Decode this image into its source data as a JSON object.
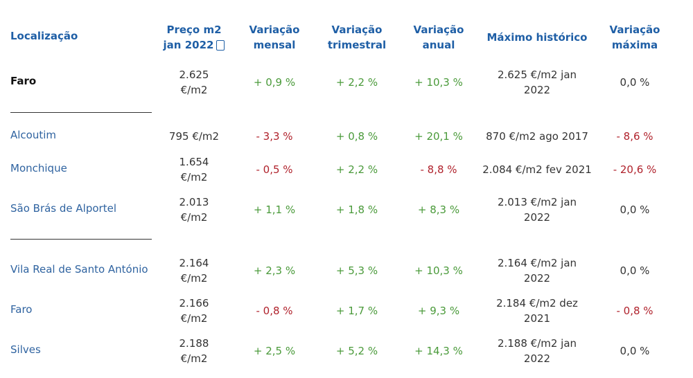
{
  "headers": {
    "location": "Localização",
    "price_line1": "Preço m2",
    "price_line2": "jan 2022",
    "monthly_line1": "Variação",
    "monthly_line2": "mensal",
    "quarterly_line1": "Variação",
    "quarterly_line2": "trimestral",
    "annual_line1": "Variação",
    "annual_line2": "anual",
    "historical_max": "Máximo histórico",
    "maxvar_line1": "Variação",
    "maxvar_line2": "máxima"
  },
  "rows": [
    {
      "location": "Faro",
      "price_line1": "2.625",
      "price_line2": "€/m2",
      "monthly": "+ 0,9 %",
      "quarterly": "+ 2,2 %",
      "annual": "+ 10,3 %",
      "max_line1": "2.625 €/m2 jan",
      "max_line2": "2022",
      "maxvar": "0,0 %"
    },
    {
      "location": "Alcoutim",
      "price_line1": "795 €/m2",
      "price_line2": "",
      "monthly": "- 3,3 %",
      "quarterly": "+ 0,8 %",
      "annual": "+ 20,1 %",
      "max_line1": "870 €/m2 ago 2017",
      "max_line2": "",
      "maxvar": "- 8,6 %"
    },
    {
      "location": "Monchique",
      "price_line1": "1.654",
      "price_line2": "€/m2",
      "monthly": "- 0,5 %",
      "quarterly": "+ 2,2 %",
      "annual": "- 8,8 %",
      "max_line1": "2.084 €/m2 fev 2021",
      "max_line2": "",
      "maxvar": "- 20,6 %"
    },
    {
      "location": "São Brás de Alportel",
      "price_line1": "2.013",
      "price_line2": "€/m2",
      "monthly": "+ 1,1 %",
      "quarterly": "+ 1,8 %",
      "annual": "+ 8,3 %",
      "max_line1": "2.013 €/m2 jan",
      "max_line2": "2022",
      "maxvar": "0,0 %"
    },
    {
      "location": "Vila Real de Santo António",
      "price_line1": "2.164",
      "price_line2": "€/m2",
      "monthly": "+ 2,3 %",
      "quarterly": "+ 5,3 %",
      "annual": "+ 10,3 %",
      "max_line1": "2.164 €/m2 jan",
      "max_line2": "2022",
      "maxvar": "0,0 %"
    },
    {
      "location": "Faro",
      "price_line1": "2.166",
      "price_line2": "€/m2",
      "monthly": "- 0,8 %",
      "quarterly": "+ 1,7 %",
      "annual": "+ 9,3 %",
      "max_line1": "2.184 €/m2 dez",
      "max_line2": "2021",
      "maxvar": "- 0,8 %"
    },
    {
      "location": "Silves",
      "price_line1": "2.188",
      "price_line2": "€/m2",
      "monthly": "+ 2,5 %",
      "quarterly": "+ 5,2 %",
      "annual": "+ 14,3 %",
      "max_line1": "2.188 €/m2 jan",
      "max_line2": "2022",
      "maxvar": "0,0 %"
    }
  ],
  "colors": {
    "header": "#1f5fa6",
    "link": "#2f63a0",
    "positive": "#4a9a3a",
    "negative": "#b0222c"
  }
}
